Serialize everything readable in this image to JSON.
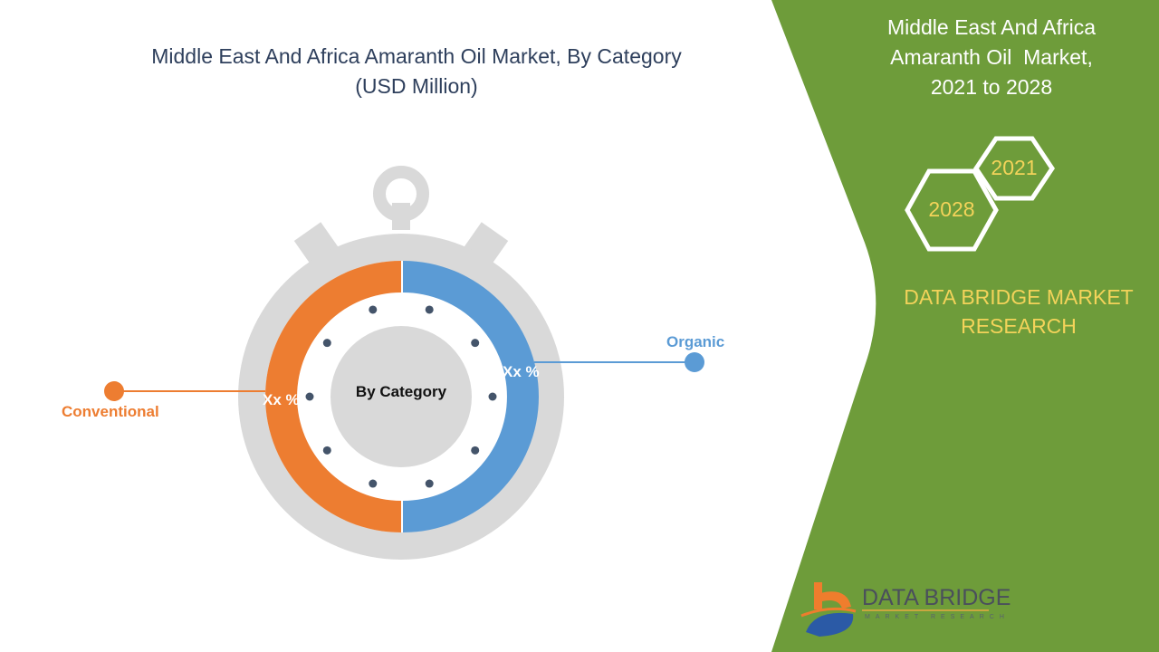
{
  "chart": {
    "title_line1": "Middle East And Africa Amaranth Oil Market, By Category",
    "title_line2": "(USD Million)",
    "center_label": "By Category",
    "segments": [
      {
        "label": "Conventional",
        "value_label": "Xx %",
        "color": "#ed7d31"
      },
      {
        "label": "Organic",
        "value_label": "Xx %",
        "color": "#5b9bd5"
      }
    ]
  },
  "side_panel": {
    "title_line1": "Middle East And Africa",
    "title_line2": "Amaranth Oil  Market,",
    "title_line3": "2021 to 2028",
    "year_start": "2021",
    "year_end": "2028",
    "brand_line1": "DATA BRIDGE MARKET",
    "brand_line2": "RESEARCH",
    "background_color": "#6e9c3a",
    "accent_color": "#f3d35a"
  },
  "logo": {
    "name": "DATA BRIDGE",
    "subtitle": "MARKET RESEARCH"
  }
}
